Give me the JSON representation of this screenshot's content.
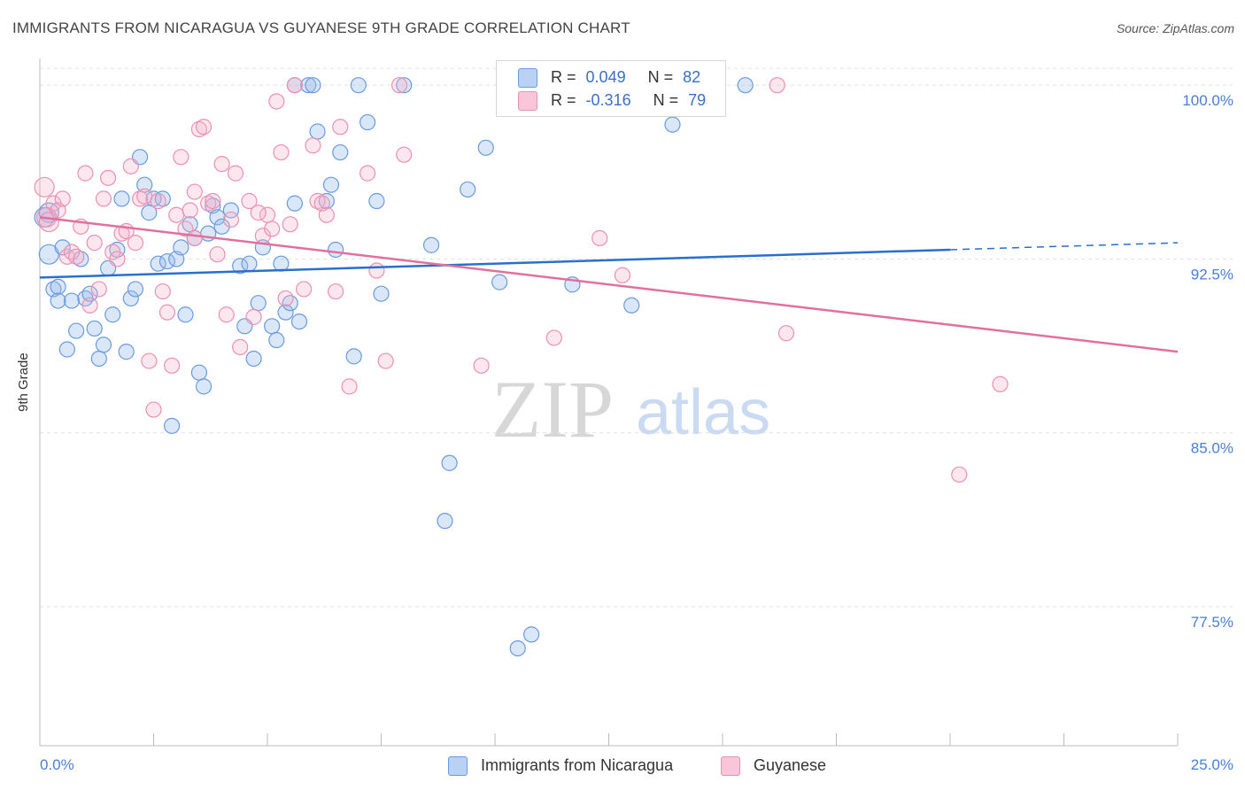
{
  "title": "IMMIGRANTS FROM NICARAGUA VS GUYANESE 9TH GRADE CORRELATION CHART",
  "source": "Source: ZipAtlas.com",
  "watermark": {
    "zip": "ZIP",
    "atlas": "atlas"
  },
  "legend": {
    "series": [
      {
        "r_label": "R =",
        "r_value": "0.049",
        "n_label": "N =",
        "n_value": "82"
      },
      {
        "r_label": "R =",
        "r_value": "-0.316",
        "n_label": "N =",
        "n_value": "79"
      }
    ]
  },
  "chart_data": {
    "type": "scatter",
    "title": "IMMIGRANTS FROM NICARAGUA VS GUYANESE 9TH GRADE CORRELATION CHART",
    "xlabel": "",
    "ylabel": "9th Grade",
    "xlim": [
      0,
      25
    ],
    "ylim": [
      71.5,
      101
    ],
    "x_tick_labels": [
      "0.0%",
      "25.0%"
    ],
    "y_ticks": [
      100.0,
      92.5,
      85.0,
      77.5
    ],
    "y_tick_labels": [
      "100.0%",
      "92.5%",
      "85.0%",
      "77.5%"
    ],
    "grid": true,
    "legend_position": "top-center",
    "colors": {
      "nicaragua": "#6a9be0",
      "guyanese": "#ec90b2",
      "nicaragua_line": "#2a6fce",
      "guyanese_line": "#e1709e",
      "axis_text": "#4a7fd4"
    },
    "series": [
      {
        "name": "Immigrants from Nicaragua",
        "trend": {
          "x": [
            0,
            20
          ],
          "y": [
            91.7,
            92.9
          ],
          "dashed_to_x": 25,
          "dashed_y": 93.2
        },
        "points": [
          [
            0.1,
            94.3
          ],
          [
            0.2,
            94.5
          ],
          [
            0.2,
            92.7
          ],
          [
            0.3,
            91.2
          ],
          [
            0.4,
            91.3
          ],
          [
            0.4,
            90.7
          ],
          [
            0.5,
            93.0
          ],
          [
            0.6,
            88.6
          ],
          [
            0.7,
            90.7
          ],
          [
            0.8,
            89.4
          ],
          [
            0.9,
            92.5
          ],
          [
            1.0,
            90.8
          ],
          [
            1.1,
            91.0
          ],
          [
            1.2,
            89.5
          ],
          [
            1.3,
            88.2
          ],
          [
            1.4,
            88.8
          ],
          [
            1.5,
            92.1
          ],
          [
            1.6,
            90.1
          ],
          [
            1.7,
            92.9
          ],
          [
            1.8,
            95.1
          ],
          [
            1.9,
            88.5
          ],
          [
            2.0,
            90.8
          ],
          [
            2.1,
            91.2
          ],
          [
            2.2,
            96.9
          ],
          [
            2.3,
            95.7
          ],
          [
            2.4,
            94.5
          ],
          [
            2.5,
            95.1
          ],
          [
            2.6,
            92.3
          ],
          [
            2.7,
            95.1
          ],
          [
            2.8,
            92.4
          ],
          [
            2.9,
            85.3
          ],
          [
            3.0,
            92.5
          ],
          [
            3.1,
            93.0
          ],
          [
            3.2,
            90.1
          ],
          [
            3.3,
            94.0
          ],
          [
            3.4,
            93.4
          ],
          [
            3.5,
            87.6
          ],
          [
            3.6,
            87.0
          ],
          [
            3.7,
            93.6
          ],
          [
            3.8,
            94.8
          ],
          [
            3.9,
            94.3
          ],
          [
            4.0,
            93.9
          ],
          [
            4.2,
            94.6
          ],
          [
            4.4,
            92.2
          ],
          [
            4.5,
            89.6
          ],
          [
            4.6,
            92.3
          ],
          [
            4.7,
            88.2
          ],
          [
            4.8,
            90.6
          ],
          [
            4.9,
            93.0
          ],
          [
            5.1,
            89.6
          ],
          [
            5.2,
            89.0
          ],
          [
            5.3,
            92.3
          ],
          [
            5.4,
            90.2
          ],
          [
            5.5,
            90.6
          ],
          [
            5.6,
            94.9
          ],
          [
            5.7,
            89.8
          ],
          [
            5.6,
            100.0
          ],
          [
            5.9,
            100.0
          ],
          [
            6.0,
            100.0
          ],
          [
            6.1,
            98.0
          ],
          [
            6.3,
            95.0
          ],
          [
            6.4,
            95.7
          ],
          [
            6.5,
            92.9
          ],
          [
            6.6,
            97.1
          ],
          [
            6.9,
            88.3
          ],
          [
            7.0,
            100.0
          ],
          [
            7.2,
            98.4
          ],
          [
            7.4,
            95.0
          ],
          [
            7.5,
            91.0
          ],
          [
            8.0,
            100.0
          ],
          [
            8.6,
            93.1
          ],
          [
            9.0,
            83.7
          ],
          [
            8.9,
            81.2
          ],
          [
            9.4,
            95.5
          ],
          [
            9.8,
            97.3
          ],
          [
            10.1,
            91.5
          ],
          [
            10.5,
            75.7
          ],
          [
            10.8,
            76.3
          ],
          [
            11.7,
            91.4
          ],
          [
            13.0,
            90.5
          ],
          [
            13.9,
            98.3
          ],
          [
            15.5,
            100.0
          ]
        ]
      },
      {
        "name": "Guyanese",
        "trend": {
          "x": [
            0,
            25
          ],
          "y": [
            94.3,
            88.5
          ]
        },
        "points": [
          [
            0.1,
            95.6
          ],
          [
            0.15,
            94.3
          ],
          [
            0.2,
            94.1
          ],
          [
            0.3,
            94.9
          ],
          [
            0.4,
            94.6
          ],
          [
            0.5,
            95.1
          ],
          [
            0.6,
            92.6
          ],
          [
            0.7,
            92.8
          ],
          [
            0.8,
            92.6
          ],
          [
            0.9,
            93.9
          ],
          [
            1.0,
            96.2
          ],
          [
            1.1,
            90.5
          ],
          [
            1.2,
            93.2
          ],
          [
            1.3,
            91.2
          ],
          [
            1.4,
            95.1
          ],
          [
            1.5,
            96.0
          ],
          [
            1.6,
            92.8
          ],
          [
            1.7,
            92.5
          ],
          [
            1.8,
            93.6
          ],
          [
            1.9,
            93.7
          ],
          [
            2.0,
            96.5
          ],
          [
            2.1,
            93.2
          ],
          [
            2.2,
            95.1
          ],
          [
            2.3,
            95.2
          ],
          [
            2.4,
            88.1
          ],
          [
            2.5,
            86.0
          ],
          [
            2.6,
            95.0
          ],
          [
            2.7,
            91.1
          ],
          [
            2.8,
            90.2
          ],
          [
            2.9,
            87.9
          ],
          [
            3.0,
            94.4
          ],
          [
            3.1,
            96.9
          ],
          [
            3.2,
            93.8
          ],
          [
            3.3,
            94.6
          ],
          [
            3.4,
            93.4
          ],
          [
            3.5,
            98.1
          ],
          [
            3.6,
            98.2
          ],
          [
            3.7,
            94.9
          ],
          [
            3.8,
            95.0
          ],
          [
            3.9,
            92.7
          ],
          [
            4.0,
            96.6
          ],
          [
            4.1,
            90.1
          ],
          [
            4.2,
            94.2
          ],
          [
            4.3,
            96.2
          ],
          [
            4.4,
            88.7
          ],
          [
            4.6,
            95.0
          ],
          [
            4.7,
            90.0
          ],
          [
            4.9,
            93.5
          ],
          [
            5.0,
            94.4
          ],
          [
            5.1,
            93.8
          ],
          [
            5.2,
            99.3
          ],
          [
            5.3,
            97.1
          ],
          [
            5.4,
            90.8
          ],
          [
            5.5,
            94.0
          ],
          [
            5.6,
            100.0
          ],
          [
            5.8,
            91.2
          ],
          [
            6.0,
            97.4
          ],
          [
            6.1,
            95.0
          ],
          [
            6.2,
            94.9
          ],
          [
            6.3,
            94.4
          ],
          [
            6.5,
            91.1
          ],
          [
            6.8,
            87.0
          ],
          [
            7.2,
            96.2
          ],
          [
            7.4,
            92.0
          ],
          [
            7.6,
            88.1
          ],
          [
            9.7,
            87.9
          ],
          [
            11.3,
            89.1
          ],
          [
            12.3,
            93.4
          ],
          [
            12.8,
            91.8
          ],
          [
            16.2,
            100.0
          ],
          [
            16.4,
            89.3
          ],
          [
            20.2,
            83.2
          ],
          [
            21.1,
            87.1
          ],
          [
            7.9,
            100.0
          ],
          [
            8.0,
            97.0
          ],
          [
            10.7,
            100.0
          ],
          [
            6.6,
            98.2
          ],
          [
            4.8,
            94.5
          ],
          [
            3.4,
            95.4
          ]
        ]
      }
    ]
  }
}
